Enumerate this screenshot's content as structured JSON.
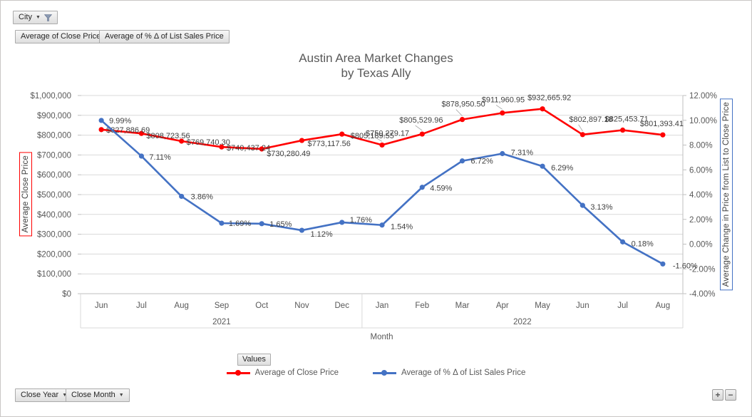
{
  "filter_button": {
    "label": "City"
  },
  "field_buttons": [
    "Average of Close Price",
    "Average of % Δ of List Sales Price"
  ],
  "chart_title": {
    "line1": "Austin Area Market Changes",
    "line2": "by Texas Ally"
  },
  "values_button_label": "Values",
  "axis_field_buttons": {
    "year": "Close Year",
    "month": "Close Month"
  },
  "zoom_controls": {
    "plus": "+",
    "minus": "−"
  },
  "legend": {
    "items": [
      {
        "label": "Average of Close Price",
        "color": "#ff0000"
      },
      {
        "label": "Average of % Δ of List Sales Price",
        "color": "#4472c4"
      }
    ]
  },
  "chart_data": {
    "type": "line",
    "title": "Austin Area Market Changes by Texas Ally",
    "categories": [
      "Jun",
      "Jul",
      "Aug",
      "Sep",
      "Oct",
      "Nov",
      "Dec",
      "Jan",
      "Feb",
      "Mar",
      "Apr",
      "May",
      "Jun",
      "Jul",
      "Aug"
    ],
    "category_groups": [
      {
        "label": "2021",
        "span": 7
      },
      {
        "label": "2022",
        "span": 8
      }
    ],
    "x_axis_title": "Month",
    "left_axis": {
      "title": "Average Close Price",
      "min": 0,
      "max": 1000000,
      "step": 100000,
      "format": "usd",
      "frame_color": "#ff0000"
    },
    "right_axis": {
      "title": "Average Change in Price from List to Close Price",
      "min": -4,
      "max": 12,
      "step": 2,
      "format": "percent",
      "frame_color": "#4472c4"
    },
    "grid": true,
    "legend_position": "bottom",
    "series": [
      {
        "name": "Average of Close Price",
        "axis": "left",
        "color": "#ff0000",
        "values": [
          827886.69,
          808723.56,
          769740.3,
          740437.24,
          730280.49,
          773117.56,
          805189.55,
          750279.17,
          805529.96,
          878950.5,
          911960.95,
          932665.92,
          802897.18,
          825453.71,
          801393.41
        ],
        "labels": [
          "$827,886.69",
          "$808,723.56",
          "$769,740.30",
          "$740,437.24",
          "$730,280.49",
          "$773,117.56",
          "$805,189.55",
          "$750,279.17",
          "$805,529.96",
          "$878,950.50",
          "$911,960.95",
          "$932,665.92",
          "$802,897.18",
          "$825,453.71",
          "$801,393.41"
        ]
      },
      {
        "name": "Average of % Δ of List Sales Price",
        "axis": "right",
        "color": "#4472c4",
        "values": [
          9.99,
          7.11,
          3.86,
          1.69,
          1.65,
          1.12,
          1.76,
          1.54,
          4.59,
          6.72,
          7.31,
          6.29,
          3.13,
          0.18,
          -1.6
        ],
        "labels": [
          "9.99%",
          "7.11%",
          "3.86%",
          "1.69%",
          "1.65%",
          "1.12%",
          "1.76%",
          "1.54%",
          "4.59%",
          "6.72%",
          "7.31%",
          "6.29%",
          "3.13%",
          "0.18%",
          "-1.60%"
        ]
      }
    ],
    "colors": {
      "gridline": "#d9d9d9",
      "axis_line": "#bfbfbf",
      "tick_text": "#595959",
      "data_label": "#3f3f3f"
    }
  }
}
